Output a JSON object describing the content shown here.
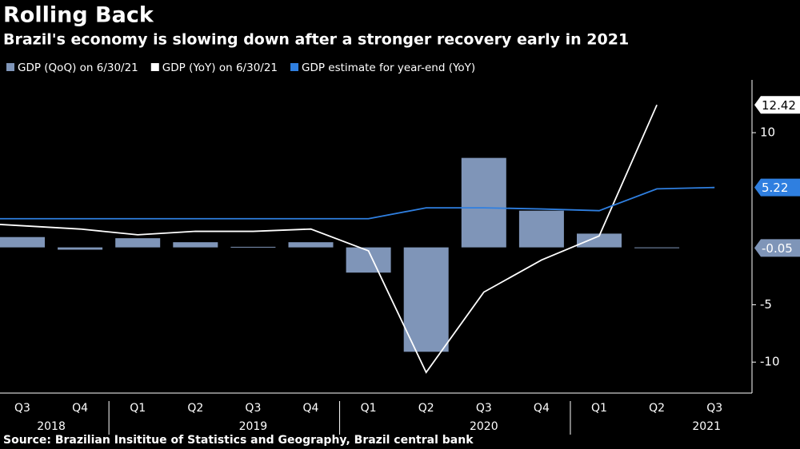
{
  "chart_data": {
    "type": "bar",
    "title": "Rolling Back",
    "subtitle": "Brazil's economy is slowing down after a stronger recovery early in 2021",
    "source": "Source: Brazilian Insititue of Statistics and Geography, Brazil central bank",
    "categories": [
      "Q3",
      "Q4",
      "Q1",
      "Q2",
      "Q3",
      "Q4",
      "Q1",
      "Q2",
      "Q3",
      "Q4",
      "Q1",
      "Q2",
      "Q3"
    ],
    "groups": [
      {
        "label": "2018",
        "count": 2
      },
      {
        "label": "2019",
        "count": 4
      },
      {
        "label": "2020",
        "count": 4
      },
      {
        "label": "2021",
        "count": 3
      }
    ],
    "series": [
      {
        "name": "GDP (QoQ) on 6/30/21",
        "type": "bar",
        "color": "#7f95b8",
        "values": [
          0.9,
          -0.2,
          0.8,
          0.45,
          0.05,
          0.45,
          -2.2,
          -9.1,
          7.8,
          3.2,
          1.2,
          -0.05,
          null
        ]
      },
      {
        "name": "GDP (YoY) on 6/30/21",
        "type": "line",
        "color": "#ffffff",
        "values": [
          2.0,
          1.6,
          1.1,
          1.4,
          1.4,
          1.6,
          -0.3,
          -10.9,
          -3.9,
          -1.1,
          1.0,
          12.42,
          null
        ]
      },
      {
        "name": "GDP estimate for year-end (YoY)",
        "type": "line",
        "color": "#2f7fe0",
        "values": [
          2.5,
          2.5,
          2.5,
          2.5,
          2.5,
          2.5,
          2.5,
          3.45,
          3.45,
          3.35,
          3.2,
          5.1,
          5.22
        ]
      }
    ],
    "ylim": [
      -12.7,
      14.6
    ],
    "yticks": [
      -10,
      -5,
      10
    ],
    "grid": false
  }
}
